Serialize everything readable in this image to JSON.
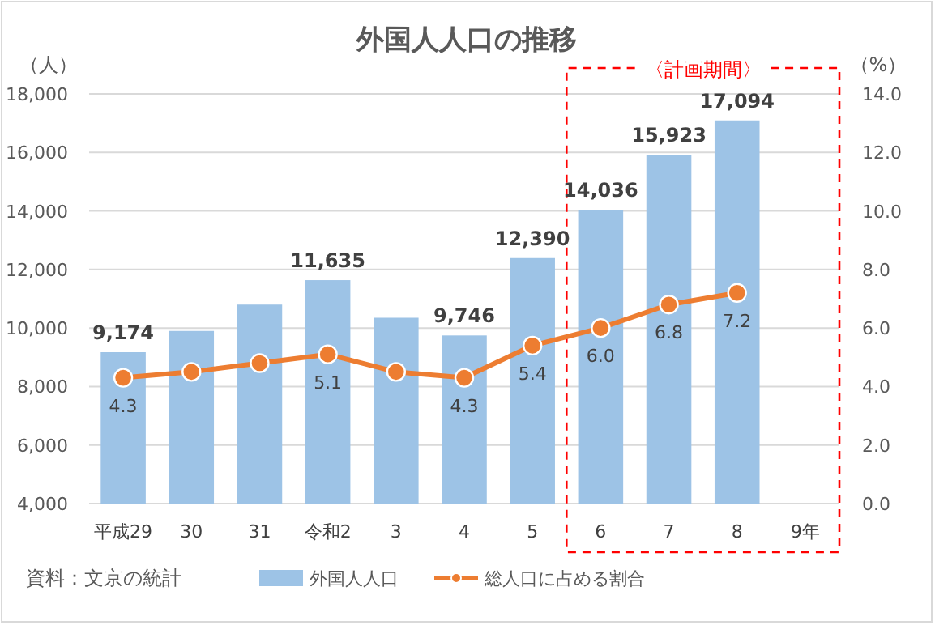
{
  "chart_data": {
    "type": "bar",
    "title": "外国人人口の推移",
    "ylabel": "（人）",
    "y2label": "（%）",
    "categories": [
      "平成29",
      "30",
      "31",
      "令和2",
      "3",
      "4",
      "5",
      "6",
      "7",
      "8",
      "9年"
    ],
    "series": [
      {
        "name": "外国人人口",
        "color": "#9dc3e6",
        "values": [
          9174,
          9900,
          10800,
          11635,
          10350,
          9746,
          12390,
          14036,
          15923,
          17094,
          null
        ],
        "value_labels": [
          "9,174",
          null,
          null,
          "11,635",
          null,
          "9,746",
          "12,390",
          "14,036",
          "15,923",
          "17,094",
          null
        ]
      },
      {
        "name": "総人口に占める割合",
        "type": "line",
        "axis": "y2",
        "color": "#ed7d31",
        "marker": "circle",
        "values": [
          4.3,
          4.5,
          4.8,
          5.1,
          4.5,
          4.3,
          5.4,
          6.0,
          6.8,
          7.2,
          null
        ],
        "value_labels": [
          "4.3",
          null,
          null,
          "5.1",
          null,
          "4.3",
          "5.4",
          "6.0",
          "6.8",
          "7.2",
          null
        ]
      }
    ],
    "ylim": [
      4000,
      18000
    ],
    "yticks": [
      {
        "value": 4000,
        "label": "4,000"
      },
      {
        "value": 6000,
        "label": "6,000"
      },
      {
        "value": 8000,
        "label": "8,000"
      },
      {
        "value": 10000,
        "label": "10,000"
      },
      {
        "value": 12000,
        "label": "12,000"
      },
      {
        "value": 14000,
        "label": "14,000"
      },
      {
        "value": 16000,
        "label": "16,000"
      },
      {
        "value": 18000,
        "label": "18,000"
      }
    ],
    "y2lim": [
      0,
      14
    ],
    "y2ticks": [
      {
        "value": 0,
        "label": "0.0"
      },
      {
        "value": 2,
        "label": "2.0"
      },
      {
        "value": 4,
        "label": "4.0"
      },
      {
        "value": 6,
        "label": "6.0"
      },
      {
        "value": 8,
        "label": "8.0"
      },
      {
        "value": 10,
        "label": "10.0"
      },
      {
        "value": 12,
        "label": "12.0"
      },
      {
        "value": 14,
        "label": "14.0"
      }
    ],
    "grid": "y",
    "legend": "bottom",
    "annotations": [
      "資料：文京の統計",
      "〈計画期間〉"
    ]
  }
}
